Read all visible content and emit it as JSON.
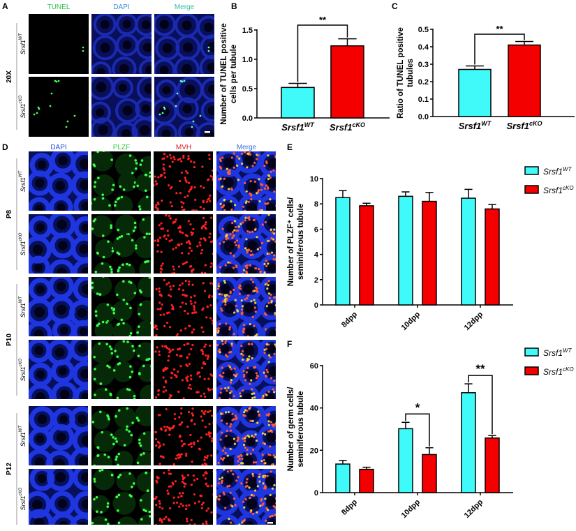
{
  "panels": {
    "A": {
      "letter": "A",
      "columns": [
        "TUNEL",
        "DAPI",
        "Merge"
      ],
      "column_colors": [
        "#2fbf4f",
        "#3a8be0",
        "#2fbf9f"
      ],
      "magnification": "20X",
      "rows": [
        {
          "base": "Srsf1",
          "sup": "WT"
        },
        {
          "base": "Srsf1",
          "sup": "cKO"
        }
      ]
    },
    "D": {
      "letter": "D",
      "columns": [
        "DAPI",
        "PLZF",
        "MVH",
        "Merge"
      ],
      "column_colors": [
        "#2b4fd8",
        "#2fcf3f",
        "#d82020",
        "#3a6be0"
      ],
      "groups": [
        "P8",
        "P10",
        "P12"
      ],
      "rows": [
        {
          "base": "Srsf1",
          "sup": "WT"
        },
        {
          "base": "Srsf1",
          "sup": "cKO"
        }
      ]
    },
    "B": {
      "letter": "B"
    },
    "C": {
      "letter": "C"
    },
    "E": {
      "letter": "E"
    },
    "F": {
      "letter": "F"
    }
  },
  "colors": {
    "wt": "#40fafa",
    "cko": "#f50000"
  },
  "chart_data": [
    {
      "id": "B",
      "type": "bar",
      "ylabel": [
        "Number of TUNEL positive",
        "cells per tubule"
      ],
      "categories": [
        {
          "base": "Srsf1",
          "sup": "WT"
        },
        {
          "base": "Srsf1",
          "sup": "cKO"
        }
      ],
      "values": [
        0.52,
        1.23
      ],
      "errors": [
        0.07,
        0.12
      ],
      "ylim": [
        0,
        1.5
      ],
      "yticks": [
        "0.0",
        "0.5",
        "1.0",
        "1.5"
      ],
      "ytick_values": [
        0,
        0.5,
        1.0,
        1.5
      ],
      "significance": [
        {
          "pair": [
            0,
            1
          ],
          "label": "**"
        }
      ]
    },
    {
      "id": "C",
      "type": "bar",
      "ylabel": [
        "Ratio of TUNEL positive",
        "tubules"
      ],
      "categories": [
        {
          "base": "Srsf1",
          "sup": "WT"
        },
        {
          "base": "Srsf1",
          "sup": "cKO"
        }
      ],
      "values": [
        0.27,
        0.41
      ],
      "errors": [
        0.02,
        0.02
      ],
      "ylim": [
        0,
        0.5
      ],
      "yticks": [
        "0.0",
        "0.1",
        "0.2",
        "0.3",
        "0.4",
        "0.5"
      ],
      "ytick_values": [
        0,
        0.1,
        0.2,
        0.3,
        0.4,
        0.5
      ],
      "significance": [
        {
          "pair": [
            0,
            1
          ],
          "label": "**"
        }
      ]
    },
    {
      "id": "E",
      "type": "bar",
      "ylabel": [
        "Number of PLZF⁺ cells/",
        "seminiferous tubule"
      ],
      "categories": [
        "8dpp",
        "10dpp",
        "12dpp"
      ],
      "series": [
        {
          "name": {
            "base": "Srsf1",
            "sup": "WT"
          },
          "values": [
            8.5,
            8.6,
            8.45
          ],
          "errors": [
            0.55,
            0.35,
            0.7
          ]
        },
        {
          "name": {
            "base": "Srsf1",
            "sup": "cKO"
          },
          "values": [
            7.85,
            8.2,
            7.6
          ],
          "errors": [
            0.2,
            0.7,
            0.35
          ]
        }
      ],
      "ylim": [
        0,
        10
      ],
      "yticks": [
        "0",
        "2",
        "4",
        "6",
        "8",
        "10"
      ],
      "ytick_values": [
        0,
        2,
        4,
        6,
        8,
        10
      ],
      "legend": "top-right",
      "significance": []
    },
    {
      "id": "F",
      "type": "bar",
      "ylabel": [
        "Number of germ cells/",
        "seminiferous tubule"
      ],
      "categories": [
        "8dpp",
        "10dpp",
        "12dpp"
      ],
      "series": [
        {
          "name": {
            "base": "Srsf1",
            "sup": "WT"
          },
          "values": [
            13.5,
            30.2,
            47.2
          ],
          "errors": [
            1.7,
            3.0,
            4.2
          ]
        },
        {
          "name": {
            "base": "Srsf1",
            "sup": "cKO"
          },
          "values": [
            11.0,
            18.0,
            25.8
          ],
          "errors": [
            1.0,
            3.2,
            1.2
          ]
        }
      ],
      "ylim": [
        0,
        60
      ],
      "yticks": [
        "0",
        "20",
        "40",
        "60"
      ],
      "ytick_values": [
        0,
        20,
        40,
        60
      ],
      "legend": "top-right",
      "significance": [
        {
          "group": 1,
          "label": "*"
        },
        {
          "group": 2,
          "label": "**"
        }
      ]
    }
  ]
}
